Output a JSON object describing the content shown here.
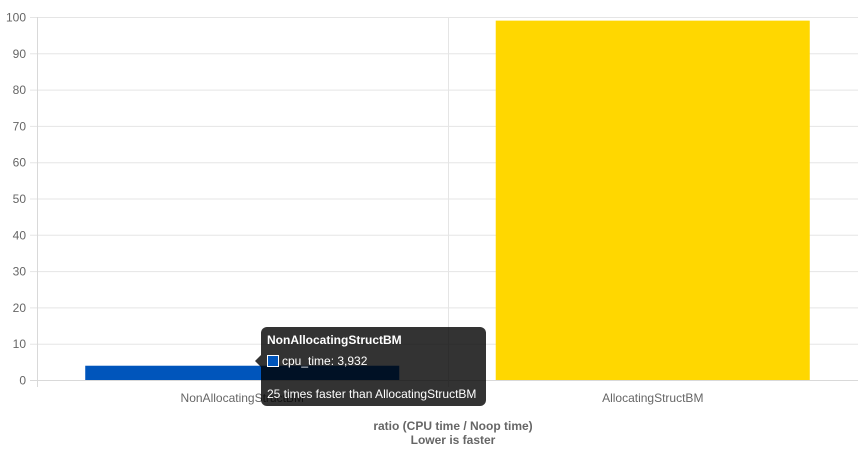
{
  "chart_data": {
    "type": "bar",
    "categories": [
      "NonAllocatingStructBM",
      "AllocatingStructBM"
    ],
    "series": [
      {
        "values": [
          3.932,
          99
        ],
        "colors": [
          "#0055bb",
          "#ffd700"
        ]
      }
    ],
    "xlabel": "ratio (CPU time / Noop time)",
    "xlabel_line2": "Lower is faster",
    "ylim": [
      0,
      100
    ],
    "yticks": [
      0,
      10,
      20,
      30,
      40,
      50,
      60,
      70,
      80,
      90,
      100
    ],
    "grid": true
  },
  "tooltip": {
    "title": "NonAllocatingStructBM",
    "series_label": "cpu_time: 3,932",
    "footer": "25 times faster than AllocatingStructBM",
    "swatch_color": "#0055bb"
  },
  "colors": {
    "grid": "#e5e5e5",
    "axis": "#d9d9d9",
    "tick_text": "#666666"
  }
}
